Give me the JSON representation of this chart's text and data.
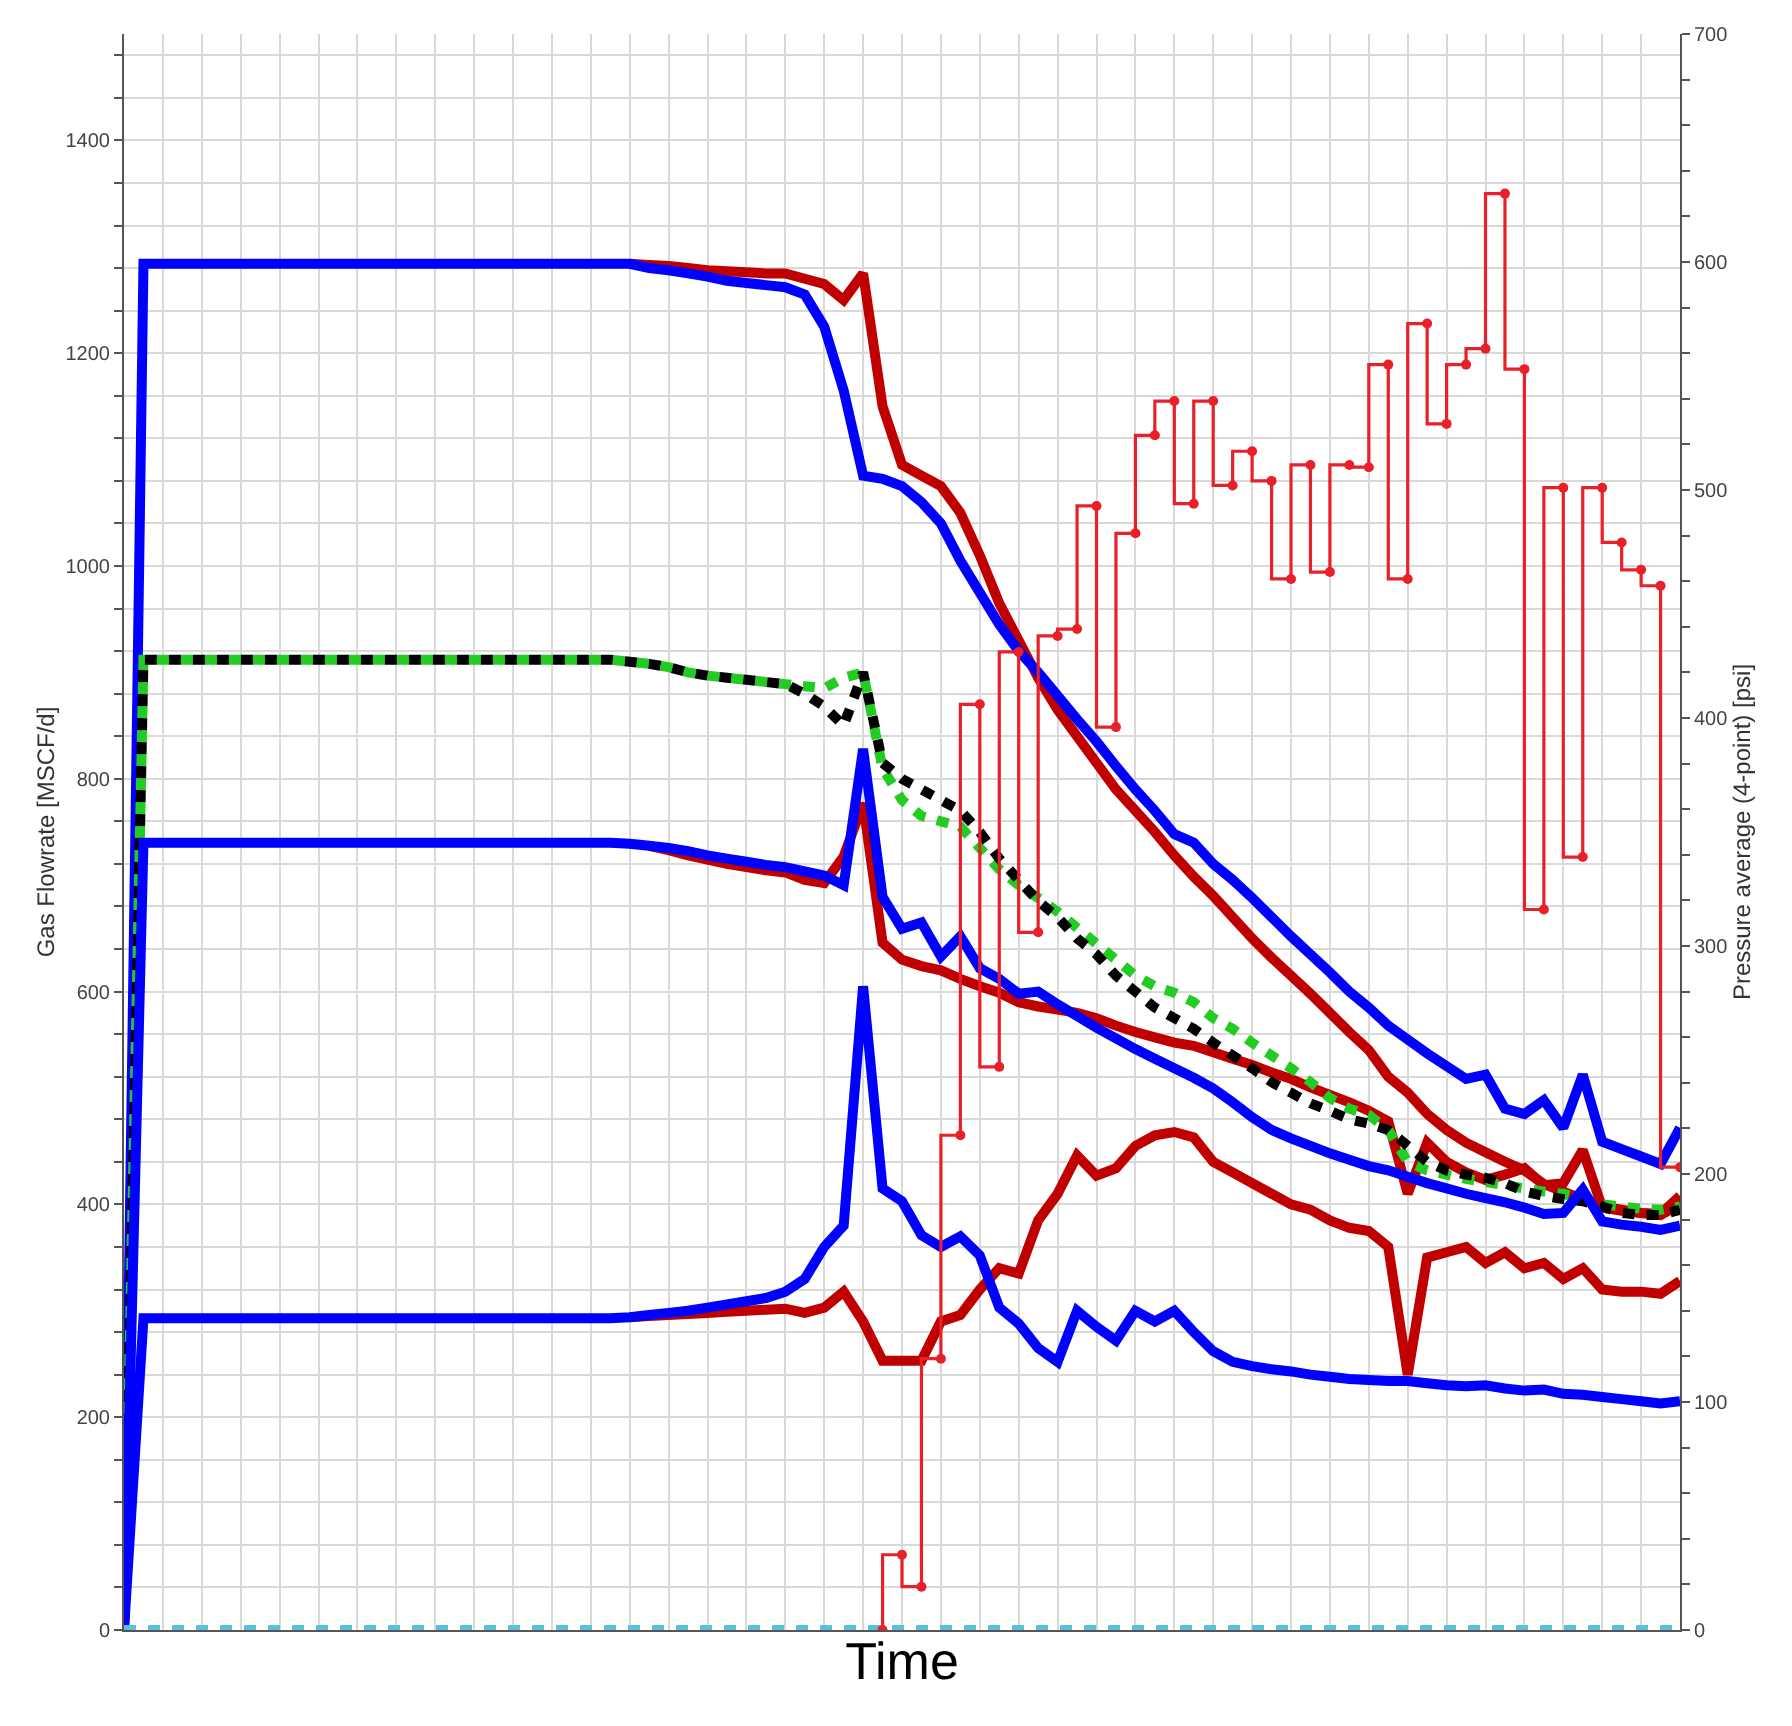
{
  "chart_data": {
    "type": "line",
    "xlabel": "Time",
    "ylabel": "Gas Flowrate [MSCF/d]",
    "y2label": "Pressure average (4-point) [psi]",
    "categories": [
      null,
      null,
      null,
      null,
      null,
      null,
      null,
      null,
      null,
      null,
      null,
      null,
      null,
      null,
      null,
      null,
      null,
      null,
      null,
      null,
      null,
      null,
      null,
      null,
      null,
      null,
      null,
      null,
      null,
      null,
      null,
      null,
      null,
      null,
      null,
      null,
      null,
      null,
      null,
      null,
      null,
      null,
      null,
      null,
      null,
      null,
      null,
      null,
      null,
      null,
      null,
      null,
      null,
      null,
      null,
      null,
      null,
      null,
      null,
      null,
      null,
      null,
      null,
      null,
      null,
      null,
      null,
      null,
      null,
      null,
      null,
      null,
      null,
      null,
      null,
      null,
      null,
      null,
      null,
      null,
      null
    ],
    "series": [
      {
        "color": "#c00000",
        "values": [
          null,
          null,
          null,
          null,
          null,
          null,
          null,
          null,
          null,
          null,
          null,
          null,
          null,
          null,
          null,
          null,
          null,
          null,
          null,
          null,
          null,
          null,
          null,
          null,
          null,
          null,
          1284,
          1283,
          1282,
          1280,
          1278,
          1277,
          1276,
          1275,
          1275,
          1270,
          1265,
          1250,
          1275,
          1150,
          1095,
          1085,
          1075,
          1050,
          1010,
          965,
          930,
          895,
          865,
          840,
          815,
          790,
          770,
          750,
          728,
          708,
          690,
          670,
          650,
          632,
          615,
          598,
          580,
          562,
          545,
          520,
          505,
          485,
          470,
          458,
          449,
          440,
          432,
          419,
          412,
          405,
          398,
          395,
          392,
          390,
          400
        ]
      },
      {
        "color": "#c00000",
        "values": [
          null,
          null,
          null,
          null,
          null,
          null,
          null,
          null,
          null,
          null,
          null,
          null,
          null,
          null,
          null,
          null,
          null,
          null,
          null,
          null,
          null,
          null,
          null,
          null,
          null,
          null,
          null,
          737,
          733,
          728,
          724,
          720,
          717,
          714,
          712,
          705,
          702,
          727,
          777,
          646,
          630,
          624,
          620,
          612,
          605,
          599,
          590,
          586,
          583,
          580,
          575,
          568,
          562,
          557,
          552,
          549,
          543,
          537,
          531,
          524,
          518,
          510,
          503,
          496,
          488,
          478,
          410,
          458,
          440,
          430,
          423,
          428,
          434,
          418,
          420,
          451,
          397,
          394,
          392,
          391,
          408
        ]
      },
      {
        "color": "#c00000",
        "values": [
          null,
          null,
          null,
          null,
          null,
          null,
          null,
          null,
          null,
          null,
          null,
          null,
          null,
          null,
          null,
          null,
          null,
          null,
          null,
          null,
          null,
          null,
          null,
          null,
          null,
          null,
          294,
          295,
          296,
          297,
          298,
          299,
          300,
          301,
          302,
          298,
          303,
          318,
          290,
          253,
          253,
          253,
          290,
          296,
          320,
          340,
          335,
          385,
          410,
          446,
          427,
          434,
          455,
          465,
          468,
          463,
          440,
          430,
          420,
          410,
          400,
          395,
          385,
          378,
          375,
          360,
          240,
          350,
          355,
          360,
          345,
          355,
          340,
          345,
          330,
          340,
          320,
          318,
          318,
          316,
          328
        ]
      },
      {
        "color": "#0000ff",
        "values": [
          0,
          1284,
          1284,
          1284,
          1284,
          1284,
          1284,
          1284,
          1284,
          1284,
          1284,
          1284,
          1284,
          1284,
          1284,
          1284,
          1284,
          1284,
          1284,
          1284,
          1284,
          1284,
          1284,
          1284,
          1284,
          1284,
          1284,
          1280,
          1278,
          1275,
          1272,
          1268,
          1266,
          1264,
          1262,
          1255,
          1225,
          1165,
          1085,
          1082,
          1075,
          1060,
          1040,
          1005,
          975,
          945,
          920,
          900,
          878,
          856,
          835,
          812,
          790,
          770,
          748,
          740,
          720,
          705,
          688,
          670,
          652,
          635,
          618,
          600,
          585,
          568,
          555,
          542,
          530,
          518,
          522,
          490,
          485,
          498,
          472,
          522,
          459,
          452,
          445,
          438,
          472
        ]
      },
      {
        "color": "#22cc22",
        "line_style": "dotted",
        "values": [
          0,
          912,
          912,
          912,
          912,
          912,
          912,
          912,
          912,
          912,
          912,
          912,
          912,
          912,
          912,
          912,
          912,
          912,
          912,
          912,
          912,
          912,
          912,
          912,
          912,
          912,
          910,
          908,
          905,
          900,
          897,
          895,
          893,
          891,
          889,
          887,
          885,
          895,
          900,
          810,
          780,
          765,
          760,
          755,
          735,
          715,
          700,
          688,
          675,
          660,
          645,
          630,
          615,
          605,
          599,
          590,
          575,
          565,
          552,
          540,
          528,
          515,
          500,
          490,
          484,
          470,
          440,
          432,
          428,
          424,
          421,
          418,
          415,
          412,
          410,
          405,
          400,
          398,
          396,
          395,
          398
        ]
      },
      {
        "color": "#000000",
        "line_style": "dotted",
        "values": [
          0,
          912,
          912,
          912,
          912,
          912,
          912,
          912,
          912,
          912,
          912,
          912,
          912,
          912,
          912,
          912,
          912,
          912,
          912,
          912,
          912,
          912,
          912,
          912,
          912,
          912,
          910,
          908,
          905,
          900,
          897,
          895,
          893,
          891,
          889,
          880,
          868,
          850,
          900,
          815,
          800,
          790,
          780,
          770,
          750,
          725,
          705,
          685,
          670,
          650,
          635,
          615,
          600,
          585,
          575,
          565,
          552,
          540,
          528,
          515,
          505,
          495,
          488,
          480,
          476,
          470,
          455,
          440,
          432,
          428,
          425,
          420,
          412,
          408,
          405,
          403,
          398,
          392,
          390,
          390,
          395
        ]
      },
      {
        "color": "#0000ff",
        "values": [
          0,
          740,
          740,
          740,
          740,
          740,
          740,
          740,
          740,
          740,
          740,
          740,
          740,
          740,
          740,
          740,
          740,
          740,
          740,
          740,
          740,
          740,
          740,
          740,
          740,
          740,
          739,
          737,
          735,
          732,
          728,
          725,
          722,
          719,
          717,
          713,
          709,
          700,
          828,
          689,
          659,
          665,
          633,
          652,
          622,
          612,
          598,
          600,
          588,
          577,
          566,
          556,
          546,
          537,
          528,
          519,
          509,
          496,
          482,
          470,
          462,
          455,
          448,
          442,
          436,
          432,
          426,
          420,
          415,
          410,
          406,
          402,
          397,
          391,
          392,
          414,
          384,
          381,
          379,
          376,
          380
        ]
      },
      {
        "color": "#0000ff",
        "values": [
          0,
          293,
          293,
          293,
          293,
          293,
          293,
          293,
          293,
          293,
          293,
          293,
          293,
          293,
          293,
          293,
          293,
          293,
          293,
          293,
          293,
          293,
          293,
          293,
          293,
          293,
          294,
          296,
          298,
          300,
          303,
          306,
          309,
          312,
          318,
          330,
          360,
          380,
          605,
          415,
          403,
          371,
          360,
          370,
          352,
          303,
          288,
          265,
          252,
          300,
          285,
          272,
          300,
          290,
          300,
          280,
          262,
          252,
          248,
          245,
          243,
          240,
          238,
          236,
          235,
          234,
          234,
          232,
          230,
          229,
          230,
          227,
          225,
          226,
          222,
          221,
          219,
          217,
          215,
          213,
          215
        ]
      },
      {
        "color": "#5bc0de",
        "line_style": "dotted",
        "values": [
          0,
          0,
          0,
          0,
          0,
          0,
          0,
          0,
          0,
          0,
          0,
          0,
          0,
          0,
          0,
          0,
          0,
          0,
          0,
          0,
          0,
          0,
          0,
          0,
          0,
          0,
          0,
          0,
          0,
          0,
          0,
          0,
          0,
          0,
          0,
          0,
          0,
          0,
          0,
          0,
          0,
          0,
          0,
          0,
          0,
          0,
          0,
          0,
          0,
          0,
          0,
          0,
          0,
          0,
          0,
          0,
          0,
          0,
          0,
          0,
          0,
          0,
          0,
          0,
          0,
          0,
          0,
          0,
          0,
          0,
          0,
          0,
          0,
          0,
          0,
          0,
          0,
          0,
          0,
          0,
          0
        ]
      },
      {
        "type": "step",
        "axis": "y2",
        "color": "#e8202a",
        "marker": "circle",
        "values": [
          null,
          null,
          null,
          null,
          null,
          null,
          null,
          null,
          null,
          null,
          null,
          null,
          null,
          null,
          null,
          null,
          null,
          null,
          null,
          null,
          null,
          null,
          null,
          null,
          null,
          null,
          null,
          null,
          null,
          null,
          null,
          null,
          null,
          null,
          null,
          null,
          null,
          null,
          null,
          0,
          33,
          19,
          119,
          217,
          406,
          247,
          429,
          306,
          436,
          439,
          493,
          396,
          481,
          524,
          539,
          494,
          539,
          502,
          517,
          504,
          461,
          511,
          464,
          511,
          510,
          555,
          461,
          573,
          529,
          555,
          562,
          630,
          553,
          316,
          501,
          339,
          501,
          477,
          465,
          458,
          203
        ]
      }
    ],
    "ylim": [
      0,
      1500
    ],
    "yticks": [
      0,
      {
        "value": 40,
        "label": null
      },
      {
        "value": 80,
        "label": null
      },
      {
        "value": 120,
        "label": null
      },
      {
        "value": 160,
        "label": null
      },
      200,
      {
        "value": 240,
        "label": null
      },
      {
        "value": 280,
        "label": null
      },
      {
        "value": 320,
        "label": null
      },
      {
        "value": 360,
        "label": null
      },
      400,
      {
        "value": 440,
        "label": null
      },
      {
        "value": 480,
        "label": null
      },
      {
        "value": 520,
        "label": null
      },
      {
        "value": 560,
        "label": null
      },
      600,
      {
        "value": 640,
        "label": null
      },
      {
        "value": 680,
        "label": null
      },
      {
        "value": 720,
        "label": null
      },
      {
        "value": 760,
        "label": null
      },
      800,
      {
        "value": 840,
        "label": null
      },
      {
        "value": 880,
        "label": null
      },
      {
        "value": 920,
        "label": null
      },
      {
        "value": 960,
        "label": null
      },
      1000,
      {
        "value": 1040,
        "label": null
      },
      {
        "value": 1080,
        "label": null
      },
      {
        "value": 1120,
        "label": null
      },
      {
        "value": 1160,
        "label": null
      },
      1200,
      {
        "value": 1240,
        "label": null
      },
      {
        "value": 1280,
        "label": null
      },
      {
        "value": 1320,
        "label": null
      },
      {
        "value": 1360,
        "label": null
      },
      1400,
      {
        "value": 1440,
        "label": null
      },
      {
        "value": 1480,
        "label": null
      }
    ],
    "y2lim": [
      0,
      700
    ],
    "y2ticks": [
      0,
      {
        "value": 20,
        "label": null
      },
      {
        "value": 40,
        "label": null
      },
      {
        "value": 60,
        "label": null
      },
      {
        "value": 80,
        "label": null
      },
      100,
      {
        "value": 120,
        "label": null
      },
      {
        "value": 140,
        "label": null
      },
      {
        "value": 160,
        "label": null
      },
      {
        "value": 180,
        "label": null
      },
      200,
      {
        "value": 220,
        "label": null
      },
      {
        "value": 240,
        "label": null
      },
      {
        "value": 260,
        "label": null
      },
      {
        "value": 280,
        "label": null
      },
      300,
      {
        "value": 320,
        "label": null
      },
      {
        "value": 340,
        "label": null
      },
      {
        "value": 360,
        "label": null
      },
      {
        "value": 380,
        "label": null
      },
      400,
      {
        "value": 420,
        "label": null
      },
      {
        "value": 440,
        "label": null
      },
      {
        "value": 460,
        "label": null
      },
      {
        "value": 480,
        "label": null
      },
      500,
      {
        "value": 520,
        "label": null
      },
      {
        "value": 540,
        "label": null
      },
      {
        "value": 560,
        "label": null
      },
      {
        "value": 580,
        "label": null
      },
      600,
      {
        "value": 620,
        "label": null
      },
      {
        "value": 640,
        "label": null
      },
      {
        "value": 660,
        "label": null
      },
      {
        "value": 680,
        "label": null
      },
      700
    ],
    "tick_labels": "y",
    "grid": true
  }
}
